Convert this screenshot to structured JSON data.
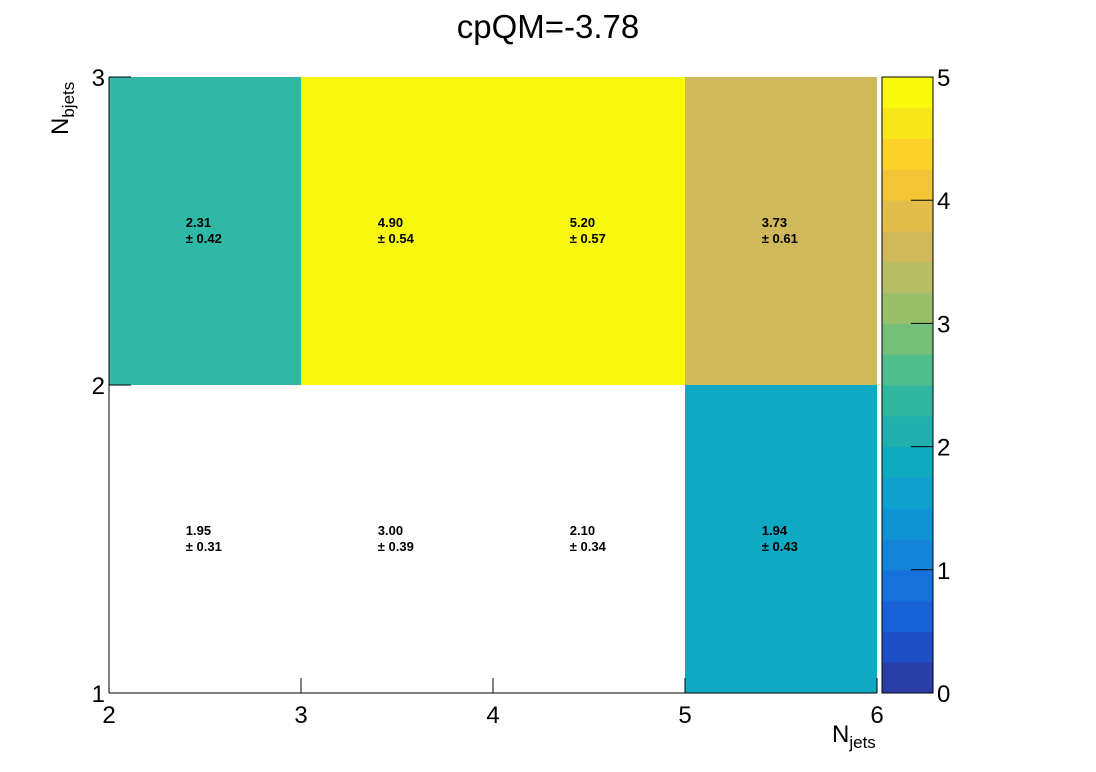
{
  "chart_data": {
    "type": "heatmap",
    "title": "cpQM=-3.78",
    "xlabel": {
      "base": "N",
      "sub": "jets"
    },
    "ylabel": {
      "base": "N",
      "sub": "bjets"
    },
    "x_edges": [
      2,
      3,
      4,
      5,
      6
    ],
    "y_edges": [
      1,
      2,
      3
    ],
    "x_tick_labels": [
      "2",
      "3",
      "4",
      "5",
      "6"
    ],
    "y_tick_labels": [
      "1",
      "2",
      "3"
    ],
    "z_range": [
      0,
      5
    ],
    "z_tick_labels": [
      "0",
      "1",
      "2",
      "3",
      "4",
      "5"
    ],
    "palette": [
      "#2a3ea8",
      "#1f4fc7",
      "#1862d8",
      "#1572dc",
      "#1484d8",
      "#0e93d4",
      "#10a0cf",
      "#0eaac0",
      "#20b0ac",
      "#31b79f",
      "#4fbd8c",
      "#75bf7a",
      "#99bf6b",
      "#b6bd64",
      "#d0b85b",
      "#e3bd4b",
      "#f3c436",
      "#fbd12a",
      "#f6e61c",
      "#f9f90e"
    ],
    "cells": [
      {
        "x": 2,
        "y": 2,
        "value": 2.31,
        "error": 0.42,
        "value_label": "2.31",
        "error_label": "± 0.42"
      },
      {
        "x": 3,
        "y": 2,
        "value": 4.9,
        "error": 0.54,
        "value_label": "4.90",
        "error_label": "± 0.54"
      },
      {
        "x": 4,
        "y": 2,
        "value": 5.2,
        "error": 0.57,
        "value_label": "5.20",
        "error_label": "± 0.57"
      },
      {
        "x": 5,
        "y": 2,
        "value": 3.73,
        "error": 0.61,
        "value_label": "3.73",
        "error_label": "± 0.61"
      },
      {
        "x": 2,
        "y": 1,
        "value": 1.95,
        "error": 0.31,
        "value_label": "1.95",
        "error_label": "± 0.31"
      },
      {
        "x": 3,
        "y": 1,
        "value": 3.0,
        "error": 0.39,
        "value_label": "3.00",
        "error_label": "± 0.39"
      },
      {
        "x": 4,
        "y": 1,
        "value": 2.1,
        "error": 0.34,
        "value_label": "2.10",
        "error_label": "± 0.34"
      },
      {
        "x": 5,
        "y": 1,
        "value": 1.94,
        "error": 0.43,
        "value_label": "1.94",
        "error_label": "± 0.43"
      }
    ],
    "cell_fill": [
      {
        "x": 2,
        "y": 2,
        "color": "#2fb8a6"
      },
      {
        "x": 3,
        "y": 2,
        "color": "#f8f80e"
      },
      {
        "x": 4,
        "y": 2,
        "color": "#f8f80e"
      },
      {
        "x": 5,
        "y": 2,
        "color": "#d0b95b"
      },
      {
        "x": 2,
        "y": 1,
        "color": "#ffffff"
      },
      {
        "x": 3,
        "y": 1,
        "color": "#ffffff"
      },
      {
        "x": 4,
        "y": 1,
        "color": "#ffffff"
      },
      {
        "x": 5,
        "y": 1,
        "color": "#0fa9c3"
      }
    ]
  }
}
